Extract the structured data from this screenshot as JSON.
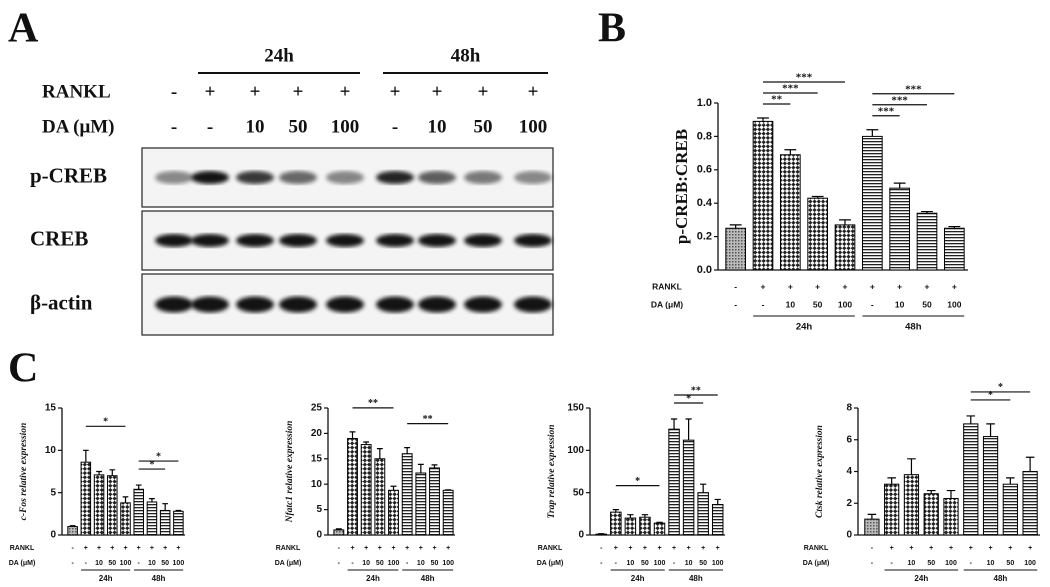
{
  "panel_labels": [
    "A",
    "B",
    "C"
  ],
  "treatments": {
    "rankl_label": "RANKL",
    "rankl": [
      "-",
      "+",
      "+",
      "+",
      "+",
      "+",
      "+",
      "+",
      "+"
    ],
    "da_label": "DA (μM)",
    "da": [
      "-",
      "-",
      "10",
      "50",
      "100",
      "-",
      "10",
      "50",
      "100"
    ],
    "groups": [
      "24h",
      "48h"
    ]
  },
  "blot": {
    "rows": [
      "p-CREB",
      "CREB",
      "β-actin"
    ]
  },
  "chart_data": [
    {
      "type": "bar",
      "y_label": "p-CREB:CREB",
      "values": [
        0.25,
        0.89,
        0.69,
        0.43,
        0.27,
        0.8,
        0.49,
        0.34,
        0.25
      ],
      "errors": [
        0.02,
        0.02,
        0.03,
        0.01,
        0.03,
        0.04,
        0.03,
        0.01,
        0.01
      ],
      "ylim": [
        0,
        1.0
      ],
      "yticks": [
        {
          "value": 0,
          "label": "0.0"
        },
        0.2,
        0.4,
        0.6,
        0.8,
        {
          "value": 1.0,
          "label": "1.0"
        }
      ],
      "bar_patterns": [
        "dots",
        "checker",
        "checker",
        "checker",
        "checker",
        "stripes",
        "stripes",
        "stripes",
        "stripes"
      ],
      "color": "#000000",
      "significance": [
        {
          "from": 1,
          "to": 2,
          "label": "**"
        },
        {
          "from": 1,
          "to": 3,
          "label": "***"
        },
        {
          "from": 1,
          "to": 4,
          "label": "***"
        },
        {
          "from": 5,
          "to": 6,
          "label": "***"
        },
        {
          "from": 5,
          "to": 7,
          "label": "***"
        },
        {
          "from": 5,
          "to": 8,
          "label": "***"
        }
      ]
    },
    {
      "type": "bar",
      "y_label": "c-Fos relative expression",
      "values": [
        1.0,
        8.6,
        7.1,
        7.0,
        3.8,
        5.4,
        3.9,
        2.9,
        2.8
      ],
      "errors": [
        0.1,
        1.4,
        0.4,
        0.7,
        0.7,
        0.5,
        0.4,
        0.8,
        0.1
      ],
      "ylim": [
        0,
        15
      ],
      "yticks": [
        0,
        5,
        10,
        15
      ],
      "bar_patterns": [
        "dots",
        "checker",
        "checker",
        "checker",
        "checker",
        "stripes",
        "stripes",
        "stripes",
        "stripes"
      ],
      "color": "#000000",
      "significance": [
        {
          "from": 1,
          "to": 4,
          "label": "*"
        },
        {
          "from": 5,
          "to": 7,
          "label": "*"
        },
        {
          "from": 5,
          "to": 8,
          "label": "*"
        }
      ]
    },
    {
      "type": "bar",
      "y_label": "Nfatc1 relative expression",
      "values": [
        1.0,
        19.0,
        17.8,
        15.0,
        8.8,
        16.0,
        12.2,
        13.2,
        8.8
      ],
      "errors": [
        0.2,
        1.3,
        0.5,
        2.0,
        0.8,
        1.2,
        1.7,
        0.6,
        0.1
      ],
      "ylim": [
        0,
        25
      ],
      "yticks": [
        0,
        5,
        10,
        15,
        20,
        25
      ],
      "bar_patterns": [
        "dots",
        "checker",
        "checker",
        "checker",
        "checker",
        "stripes",
        "stripes",
        "stripes",
        "stripes"
      ],
      "color": "#000000",
      "significance": [
        {
          "from": 1,
          "to": 4,
          "label": "**"
        },
        {
          "from": 5,
          "to": 8,
          "label": "**"
        }
      ]
    },
    {
      "type": "bar",
      "y_label": "Trap relative expression",
      "values": [
        1,
        27,
        20,
        21,
        14,
        125,
        112,
        50,
        36
      ],
      "errors": [
        0.5,
        3,
        4,
        3,
        1,
        12,
        25,
        10,
        6
      ],
      "ylim": [
        0,
        150
      ],
      "yticks": [
        0,
        50,
        100,
        150
      ],
      "bar_patterns": [
        "dots",
        "checker",
        "checker",
        "checker",
        "checker",
        "stripes",
        "stripes",
        "stripes",
        "stripes"
      ],
      "color": "#000000",
      "significance": [
        {
          "from": 1,
          "to": 4,
          "label": "*"
        },
        {
          "from": 5,
          "to": 7,
          "label": "*"
        },
        {
          "from": 5,
          "to": 8,
          "label": "**"
        }
      ]
    },
    {
      "type": "bar",
      "y_label": "Ctsk relative expression",
      "values": [
        1.0,
        3.2,
        3.8,
        2.6,
        2.3,
        7.0,
        6.2,
        3.2,
        4.0
      ],
      "errors": [
        0.3,
        0.4,
        1.0,
        0.2,
        0.5,
        0.5,
        0.8,
        0.4,
        0.9
      ],
      "ylim": [
        0,
        8
      ],
      "yticks": [
        0,
        2,
        4,
        6,
        8
      ],
      "bar_patterns": [
        "dots",
        "checker",
        "checker",
        "checker",
        "checker",
        "stripes",
        "stripes",
        "stripes",
        "stripes"
      ],
      "color": "#000000",
      "significance": [
        {
          "from": 5,
          "to": 7,
          "label": "*"
        },
        {
          "from": 5,
          "to": 8,
          "label": "*"
        }
      ]
    }
  ]
}
